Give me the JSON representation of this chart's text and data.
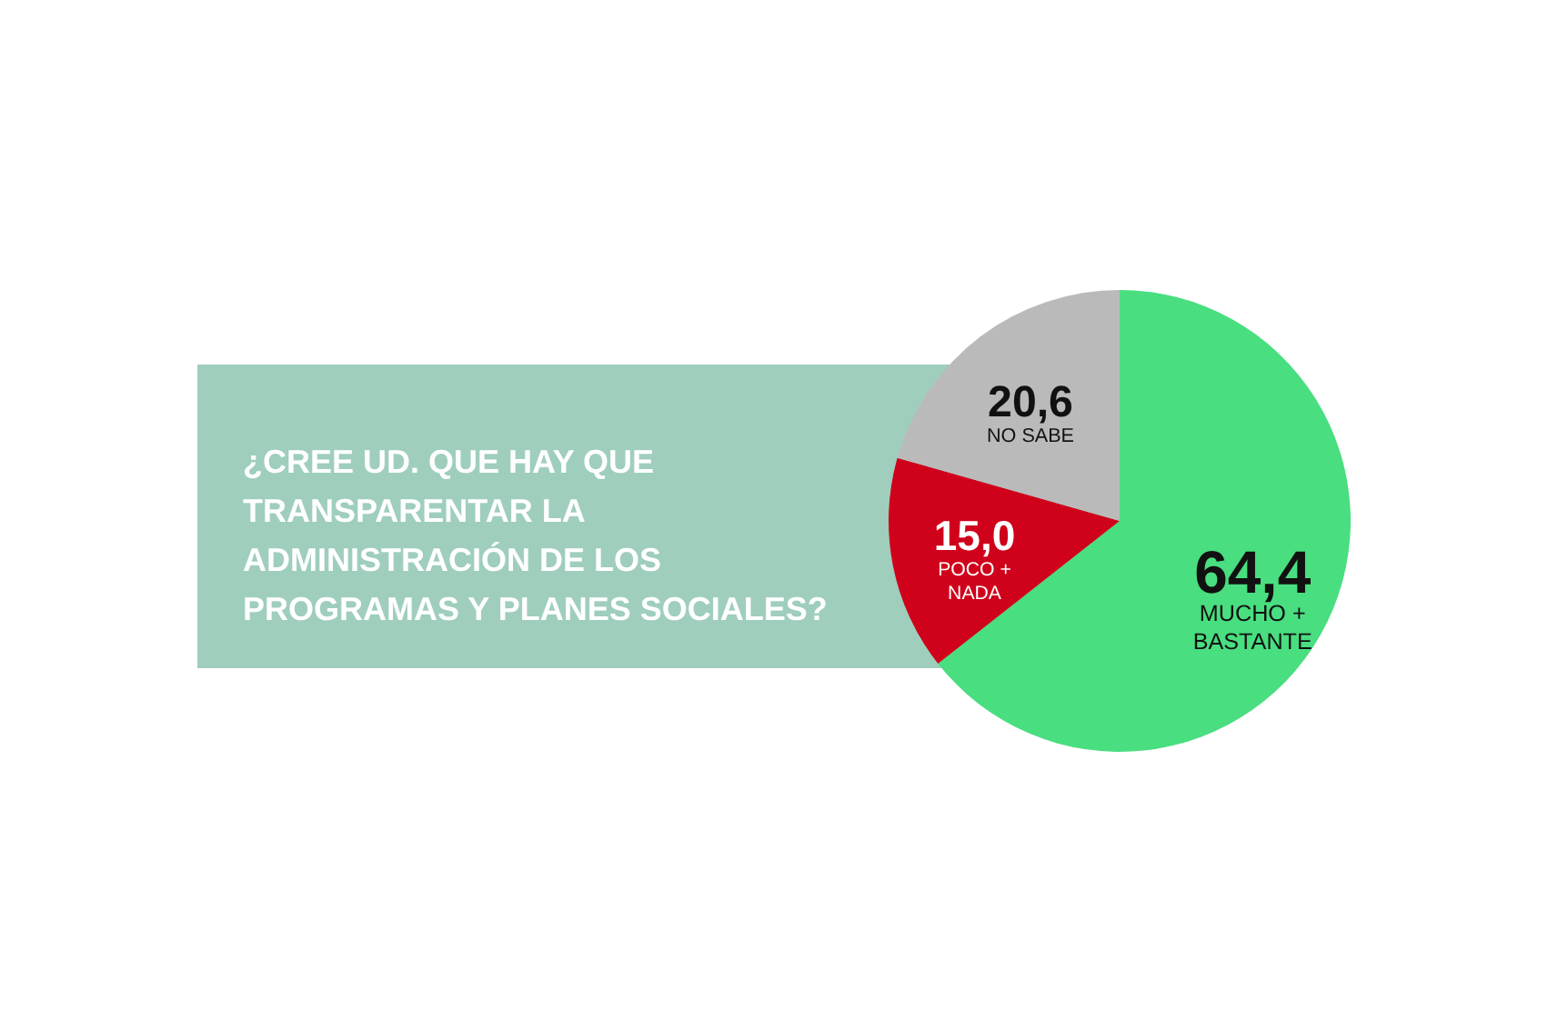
{
  "chart_data": {
    "type": "pie",
    "title": "¿CREE UD. QUE HAY QUE TRANSPARENTAR LA ADMINISTRACIÓN DE LOS PROGRAMAS Y PLANES SOCIALES?",
    "categories": [
      "MUCHO + BASTANTE",
      "POCO + NADA",
      "NO SABE"
    ],
    "values": [
      64.4,
      15.0,
      20.6
    ],
    "colors": [
      "#49de7f",
      "#d0021b",
      "#bababa"
    ],
    "value_labels": [
      "64,4",
      "15,0",
      "20,6"
    ]
  }
}
